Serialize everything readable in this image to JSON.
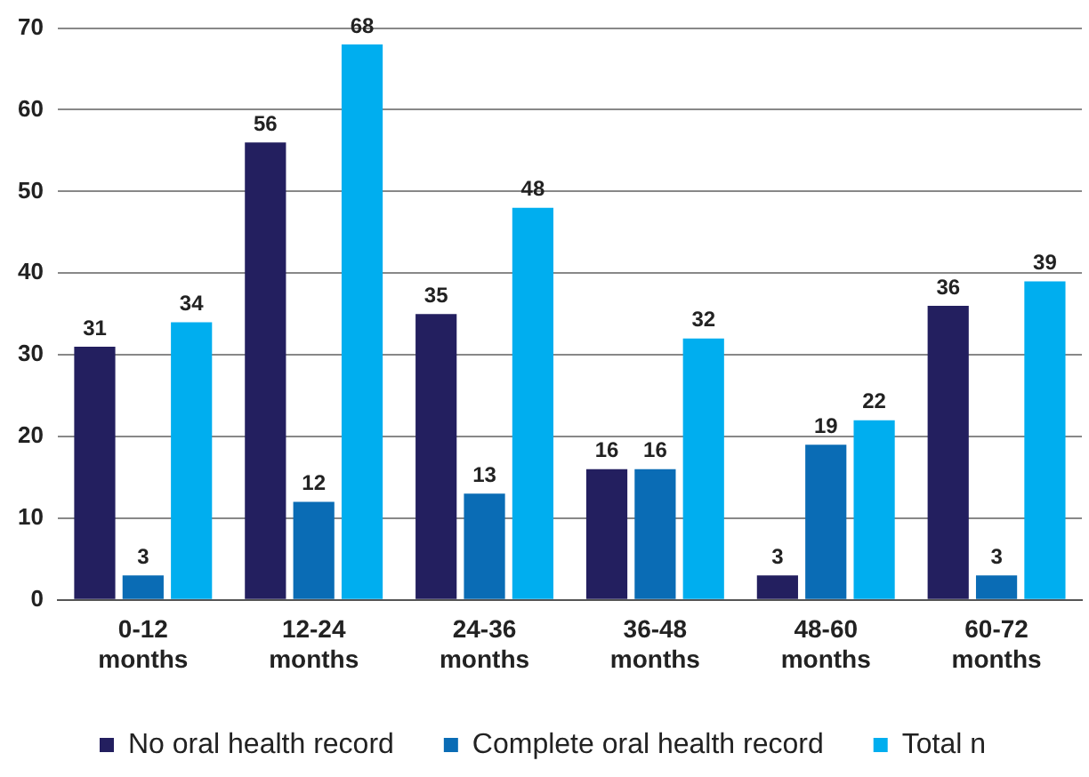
{
  "chart_data": {
    "type": "bar",
    "categories": [
      "0-12 months",
      "12-24 months",
      "24-36 months",
      "36-48 months",
      "48-60 months",
      "60-72 months"
    ],
    "series": [
      {
        "name": "No oral health record",
        "color": "#231f5f",
        "values": [
          31,
          56,
          35,
          16,
          3,
          36
        ]
      },
      {
        "name": "Complete oral health record",
        "color": "#0a6cb5",
        "values": [
          3,
          12,
          13,
          16,
          19,
          3
        ]
      },
      {
        "name": "Total n",
        "color": "#00aeef",
        "values": [
          34,
          68,
          48,
          32,
          22,
          39
        ]
      }
    ],
    "ylim": [
      0,
      70
    ],
    "yticks": [
      0,
      10,
      20,
      30,
      40,
      50,
      60,
      70
    ],
    "grid": "y",
    "legend": "bottom",
    "data_labels": true
  }
}
